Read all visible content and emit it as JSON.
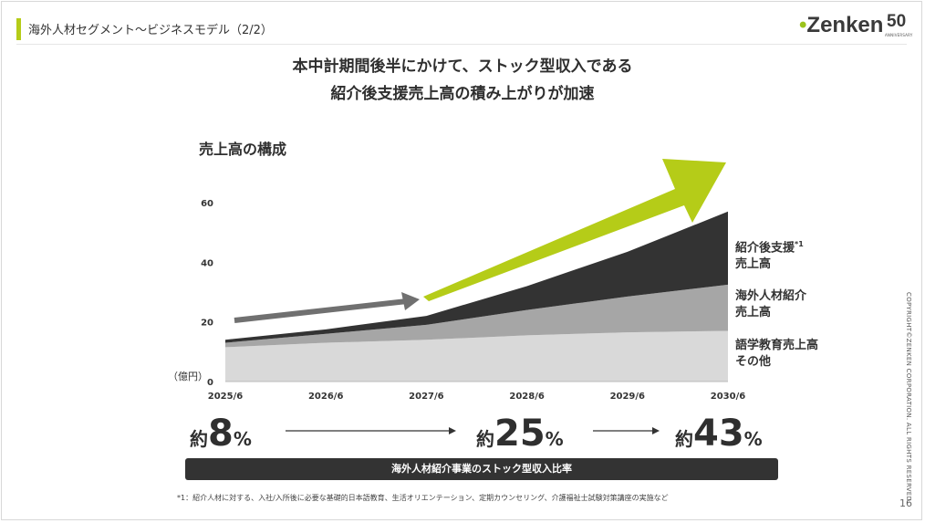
{
  "header": {
    "title": "海外人材セグメント～ビジネスモデル（2/2）",
    "logo_text": "Zenken",
    "logo_anniversary": "50",
    "logo_anniversary_sub": "ANNIVERSARY"
  },
  "headline": {
    "line1": "本中計期間後半にかけて、ストック型収入である",
    "line2": "紹介後支援売上高の積み上がりが加速"
  },
  "chart_data": {
    "type": "area",
    "title": "売上高の構成",
    "ylabel": "（億円）",
    "ylim": [
      0,
      60
    ],
    "y_ticks": [
      0,
      20,
      40,
      60
    ],
    "stacked": true,
    "categories": [
      "2025/6",
      "2026/6",
      "2027/6",
      "2028/6",
      "2029/6",
      "2030/6"
    ],
    "series": [
      {
        "name": "語学教育売上高 その他",
        "values": [
          11.5,
          13,
          14,
          15.5,
          16.5,
          17
        ],
        "color": "#d9d9d9"
      },
      {
        "name": "海外人材紹介 売上高",
        "values": [
          1.5,
          3,
          5,
          8.5,
          12,
          15.5
        ],
        "color": "#a6a6a6"
      },
      {
        "name": "紹介後支援 売上高",
        "values": [
          1,
          1.5,
          3,
          8,
          15,
          24.5
        ],
        "color": "#333333"
      }
    ],
    "legend": [
      {
        "line1": "紹介後支援",
        "sup": "*1",
        "line2": "売上高"
      },
      {
        "line1": "海外人材紹介",
        "line2": "売上高"
      },
      {
        "line1": "語学教育売上高",
        "line2": "その他"
      }
    ],
    "arrow_colors": {
      "small": "#707070",
      "large": "#b5cc18"
    }
  },
  "stats": [
    {
      "prefix": "約",
      "value": "8",
      "suffix": "%"
    },
    {
      "prefix": "約",
      "value": "25",
      "suffix": "%"
    },
    {
      "prefix": "約",
      "value": "43",
      "suffix": "%"
    }
  ],
  "ratio_label": "海外人材紹介事業のストック型収入比率",
  "footnote": "*1：紹介人材に対する、入社/入所後に必要な基礎的日本語教育、生活オリエンテーション、定期カウンセリング、介護福祉士試験対策講座の実施など",
  "page_number": "16",
  "copyright": "COPYRIGHT©ZENKEN CORPORATION. ALL RIGHTS RESERVED."
}
